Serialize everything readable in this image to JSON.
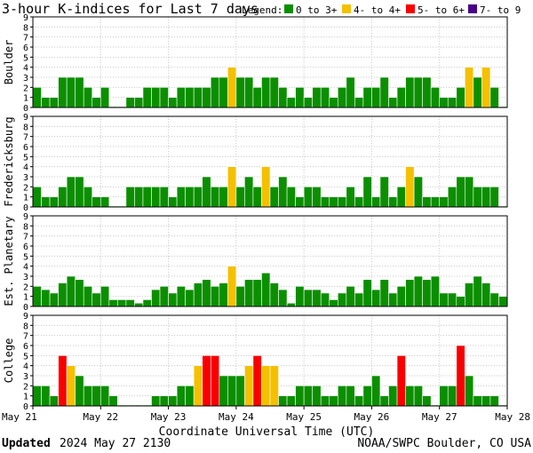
{
  "chart_data": {
    "type": "bar",
    "title": "3-hour K-indices for Last 7 days",
    "legend": {
      "label": "Legend:",
      "items": [
        {
          "label": "0 to 3+",
          "color": "#0b8f00"
        },
        {
          "label": "4- to 4+",
          "color": "#f4c000"
        },
        {
          "label": "5- to 6+",
          "color": "#f80000"
        },
        {
          "label": "7- to 9",
          "color": "#480088"
        }
      ]
    },
    "xlabel": "Coordinate Universal Time (UTC)",
    "x_ticks": [
      "May 21",
      "May 22",
      "May 23",
      "May 24",
      "May 25",
      "May 26",
      "May 27",
      "May 28"
    ],
    "ylim": [
      0,
      9
    ],
    "y_ticks": [
      "0",
      "1",
      "2",
      "3",
      "4",
      "5",
      "6",
      "7",
      "8",
      "9"
    ],
    "grid": true,
    "panels": [
      {
        "name": "Boulder",
        "values": [
          2,
          1,
          1,
          3,
          3,
          3,
          2,
          1,
          2,
          0,
          0,
          1,
          1,
          2,
          2,
          2,
          1,
          2,
          2,
          2,
          2,
          3,
          3,
          4,
          3,
          3,
          2,
          3,
          3,
          2,
          1,
          2,
          1,
          2,
          2,
          1,
          2,
          3,
          1,
          2,
          2,
          3,
          1,
          2,
          3,
          3,
          3,
          2,
          1,
          1,
          2,
          4,
          3,
          4,
          2,
          0
        ]
      },
      {
        "name": "Fredericksburg",
        "values": [
          2,
          1,
          1,
          2,
          3,
          3,
          2,
          1,
          1,
          0,
          0,
          2,
          2,
          2,
          2,
          2,
          1,
          2,
          2,
          2,
          3,
          2,
          2,
          4,
          2,
          3,
          2,
          4,
          2,
          3,
          2,
          1,
          2,
          2,
          1,
          1,
          1,
          2,
          1,
          3,
          1,
          3,
          1,
          2,
          4,
          3,
          1,
          1,
          1,
          2,
          3,
          3,
          2,
          2,
          2,
          0
        ]
      },
      {
        "name": "Est. Planetary",
        "values": [
          2,
          1.67,
          1.33,
          2.33,
          3,
          2.67,
          2,
          1.33,
          2,
          0.67,
          0.67,
          0.67,
          0.33,
          0.67,
          1.67,
          2,
          1.33,
          2,
          1.67,
          2.33,
          2.67,
          2,
          2.33,
          4,
          2,
          2.67,
          2.67,
          3.33,
          2.33,
          1.67,
          0.33,
          2,
          1.67,
          1.67,
          1.33,
          0.67,
          1.33,
          2,
          1.33,
          2.67,
          1.67,
          2.67,
          1.33,
          2,
          2.67,
          3,
          2.67,
          3,
          1.33,
          1.33,
          1,
          2.33,
          3,
          2.33,
          1.33,
          1
        ]
      },
      {
        "name": "College",
        "values": [
          2,
          2,
          1,
          5,
          4,
          3,
          2,
          2,
          2,
          1,
          0,
          0,
          0,
          0,
          1,
          1,
          1,
          2,
          2,
          4,
          5,
          5,
          3,
          3,
          3,
          4,
          5,
          4,
          4,
          1,
          1,
          2,
          2,
          2,
          1,
          1,
          2,
          2,
          1,
          2,
          3,
          1,
          2,
          5,
          2,
          2,
          1,
          0,
          2,
          2,
          6,
          3,
          1,
          1,
          1,
          0
        ]
      }
    ]
  },
  "footer": {
    "updated_label": "Updated",
    "updated_value": "2024 May 27 2130",
    "source": "NOAA/SWPC Boulder, CO USA"
  }
}
